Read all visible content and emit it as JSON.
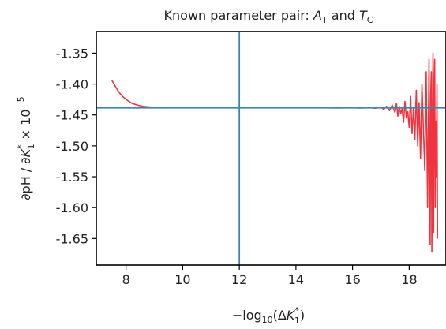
{
  "chart_data": {
    "type": "line",
    "title": {
      "prefix": "Known parameter pair: ",
      "var1": "A",
      "var1_sub": "T",
      "joiner": " and ",
      "var2": "T",
      "var2_sub": "C"
    },
    "xlabel": {
      "prefix": "−log",
      "sub": "10",
      "mid": "(Δ",
      "var": "K",
      "var_sup": "*",
      "var_sub": "1",
      "suffix": ")"
    },
    "ylabel": {
      "prefix": "∂pH / ∂",
      "var": "K",
      "var_sup": "*",
      "var_sub": "1",
      "mult": " × 10",
      "exp": "−5"
    },
    "xlim": [
      6.95,
      19.3
    ],
    "ylim": [
      -1.693,
      -1.315
    ],
    "xticks": [
      {
        "value": 8,
        "label": "8"
      },
      {
        "value": 10,
        "label": "10"
      },
      {
        "value": 12,
        "label": "12"
      },
      {
        "value": 14,
        "label": "14"
      },
      {
        "value": 16,
        "label": "16"
      },
      {
        "value": 18,
        "label": "18"
      }
    ],
    "yticks": [
      {
        "value": -1.35,
        "label": "-1.35"
      },
      {
        "value": -1.4,
        "label": "-1.40"
      },
      {
        "value": -1.45,
        "label": "-1.45"
      },
      {
        "value": -1.5,
        "label": "-1.50"
      },
      {
        "value": -1.55,
        "label": "-1.55"
      },
      {
        "value": -1.6,
        "label": "-1.60"
      },
      {
        "value": -1.65,
        "label": "-1.65"
      }
    ],
    "reference_lines": {
      "vertical_x": 12,
      "horizontal_y": -1.4385,
      "color": "#3b87a8"
    },
    "grid": false,
    "legend": "none",
    "series": [
      {
        "color": "#f0343f",
        "x": [
          7.5,
          7.6,
          7.7,
          7.8,
          7.9,
          8.0,
          8.2,
          8.4,
          8.6,
          8.8,
          9.0,
          9.3,
          9.6,
          10.0,
          11.0,
          12.0,
          13.0,
          14.0,
          15.0,
          15.5,
          16.0,
          16.3,
          16.6,
          16.8,
          17.0,
          17.1,
          17.2,
          17.3,
          17.4,
          17.5,
          17.55,
          17.6,
          17.65,
          17.7,
          17.75,
          17.8,
          17.85,
          17.9,
          17.95,
          18.0,
          18.05,
          18.1,
          18.15,
          18.2,
          18.25,
          18.3,
          18.35,
          18.4,
          18.45,
          18.5,
          18.55,
          18.6,
          18.65,
          18.7,
          18.72,
          18.74,
          18.76,
          18.78,
          18.8,
          18.82,
          18.84,
          18.86,
          18.88,
          18.9,
          18.92,
          18.94,
          18.96,
          18.98,
          19.0
        ],
        "y": [
          -1.394,
          -1.402,
          -1.41,
          -1.416,
          -1.421,
          -1.425,
          -1.431,
          -1.434,
          -1.436,
          -1.437,
          -1.4378,
          -1.4382,
          -1.4384,
          -1.4385,
          -1.4385,
          -1.4385,
          -1.4385,
          -1.4385,
          -1.4385,
          -1.4386,
          -1.4384,
          -1.4388,
          -1.4382,
          -1.4392,
          -1.437,
          -1.441,
          -1.436,
          -1.443,
          -1.434,
          -1.446,
          -1.431,
          -1.452,
          -1.436,
          -1.448,
          -1.44,
          -1.462,
          -1.428,
          -1.455,
          -1.445,
          -1.47,
          -1.42,
          -1.48,
          -1.44,
          -1.49,
          -1.41,
          -1.5,
          -1.43,
          -1.52,
          -1.4,
          -1.47,
          -1.54,
          -1.38,
          -1.6,
          -1.36,
          -1.55,
          -1.66,
          -1.42,
          -1.38,
          -1.672,
          -1.5,
          -1.35,
          -1.64,
          -1.41,
          -1.36,
          -1.6,
          -1.46,
          -1.55,
          -1.4,
          -1.65
        ]
      }
    ]
  }
}
